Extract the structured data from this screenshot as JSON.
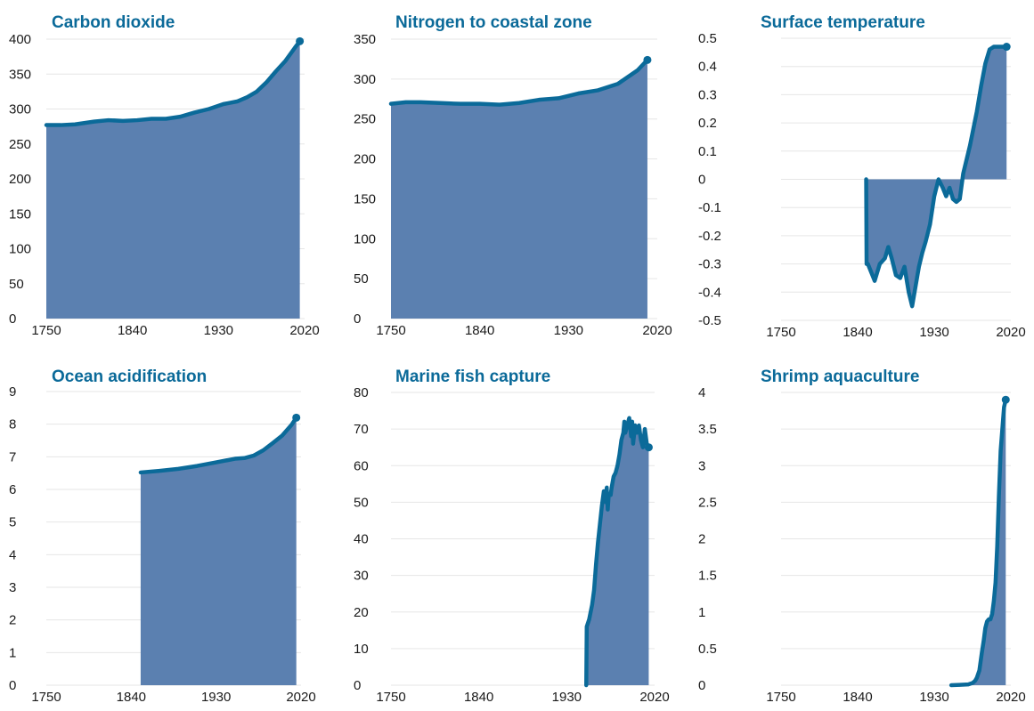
{
  "style": {
    "line_color": "#0b6a99",
    "fill_color": "#5b80b0",
    "title_color": "#0b6a99"
  },
  "chart_data": [
    {
      "type": "area",
      "title": "Carbon dioxide",
      "x_ticks": [
        "1750",
        "1840",
        "1930",
        "2020"
      ],
      "y_ticks": [
        "0",
        "50",
        "100",
        "150",
        "200",
        "250",
        "300",
        "350",
        "400"
      ],
      "xlim": [
        1750,
        2020
      ],
      "ylim": [
        0,
        400
      ],
      "x": [
        1750,
        1765,
        1780,
        1800,
        1815,
        1830,
        1845,
        1860,
        1875,
        1890,
        1905,
        1920,
        1935,
        1950,
        1960,
        1970,
        1980,
        1990,
        2000,
        2010,
        2015
      ],
      "y": [
        277,
        277,
        278,
        282,
        284,
        283,
        284,
        286,
        286,
        289,
        295,
        300,
        307,
        311,
        317,
        325,
        338,
        354,
        369,
        388,
        397
      ]
    },
    {
      "type": "area",
      "title": "Nitrogen to coastal zone",
      "x_ticks": [
        "1750",
        "1840",
        "1930",
        "2020"
      ],
      "y_ticks": [
        "0",
        "50",
        "100",
        "150",
        "200",
        "250",
        "300",
        "350"
      ],
      "xlim": [
        1750,
        2020
      ],
      "ylim": [
        0,
        350
      ],
      "x": [
        1750,
        1765,
        1780,
        1800,
        1820,
        1840,
        1860,
        1880,
        1900,
        1920,
        1940,
        1960,
        1980,
        2000,
        2010
      ],
      "y": [
        269,
        271,
        271,
        270,
        269,
        269,
        268,
        270,
        274,
        276,
        282,
        286,
        294,
        311,
        324
      ]
    },
    {
      "type": "area",
      "title": "Surface temperature",
      "x_ticks": [
        "1750",
        "1840",
        "1930",
        "2020"
      ],
      "y_ticks": [
        "-0.5",
        "-0.4",
        "-0.3",
        "-0.2",
        "-0.1",
        "0",
        "0.1",
        "0.2",
        "0.3",
        "0.4",
        "0.5"
      ],
      "xlim": [
        1750,
        2020
      ],
      "ylim": [
        -0.5,
        0.5
      ],
      "baseline": 0,
      "x": [
        1850,
        1850.5,
        1852,
        1856,
        1860,
        1866,
        1872,
        1876,
        1880,
        1885,
        1890,
        1895,
        1900,
        1904,
        1908,
        1912,
        1916,
        1920,
        1925,
        1930,
        1935,
        1940,
        1944,
        1948,
        1952,
        1956,
        1960,
        1964,
        1968,
        1972,
        1976,
        1980,
        1985,
        1990,
        1995,
        2000,
        2005,
        2010,
        2015
      ],
      "y": [
        0,
        -0.3,
        -0.3,
        -0.33,
        -0.36,
        -0.3,
        -0.28,
        -0.24,
        -0.28,
        -0.34,
        -0.35,
        -0.31,
        -0.4,
        -0.45,
        -0.38,
        -0.31,
        -0.26,
        -0.22,
        -0.16,
        -0.06,
        0.0,
        -0.03,
        -0.06,
        -0.03,
        -0.07,
        -0.08,
        -0.07,
        0.02,
        0.07,
        0.12,
        0.18,
        0.24,
        0.33,
        0.41,
        0.46,
        0.47,
        0.47,
        0.47,
        0.47
      ]
    },
    {
      "type": "area",
      "title": "Ocean acidification",
      "x_ticks": [
        "1750",
        "1840",
        "1930",
        "2020"
      ],
      "y_ticks": [
        "0",
        "1",
        "2",
        "3",
        "4",
        "5",
        "6",
        "7",
        "8",
        "9"
      ],
      "xlim": [
        1750,
        2020
      ],
      "ylim": [
        0,
        9
      ],
      "x": [
        1850,
        1870,
        1890,
        1910,
        1930,
        1950,
        1960,
        1970,
        1980,
        1990,
        2000,
        2010,
        2015
      ],
      "y": [
        6.52,
        6.57,
        6.63,
        6.72,
        6.83,
        6.94,
        6.96,
        7.04,
        7.2,
        7.42,
        7.65,
        7.98,
        8.2
      ]
    },
    {
      "type": "area",
      "title": "Marine fish capture",
      "x_ticks": [
        "1750",
        "1840",
        "1930",
        "2020"
      ],
      "y_ticks": [
        "0",
        "10",
        "20",
        "30",
        "40",
        "50",
        "60",
        "70",
        "80"
      ],
      "xlim": [
        1750,
        2020
      ],
      "ylim": [
        0,
        80
      ],
      "x": [
        1950,
        1950.5,
        1953,
        1956,
        1958,
        1960,
        1962,
        1964,
        1966,
        1968,
        1970,
        1971,
        1972,
        1973,
        1975,
        1976,
        1978,
        1980,
        1982,
        1984,
        1986,
        1988,
        1989,
        1990,
        1992,
        1994,
        1996,
        1997,
        1998,
        2000,
        2002,
        2004,
        2006,
        2008,
        2010,
        2012,
        2014
      ],
      "y": [
        0,
        16,
        18,
        22,
        26,
        33,
        39,
        44,
        49,
        53,
        50,
        54,
        48,
        52,
        52,
        54,
        57,
        58,
        60,
        63,
        67,
        69,
        72,
        69,
        71,
        73,
        68,
        72,
        66,
        71,
        69,
        71,
        67,
        65,
        70,
        66,
        65
      ]
    },
    {
      "type": "area",
      "title": "Shrimp aquaculture",
      "x_ticks": [
        "1750",
        "1840",
        "1930",
        "2020"
      ],
      "y_ticks": [
        "0",
        "0.5",
        "1",
        "1.5",
        "2",
        "2.5",
        "3",
        "3.5",
        "4"
      ],
      "xlim": [
        1750,
        2020
      ],
      "ylim": [
        0,
        4
      ],
      "x": [
        1950,
        1960,
        1970,
        1975,
        1978,
        1980,
        1983,
        1986,
        1988,
        1990,
        1992,
        1994,
        1996,
        1998,
        2000,
        2002,
        2004,
        2006,
        2008,
        2010,
        2012,
        2014
      ],
      "y": [
        0,
        0.005,
        0.01,
        0.03,
        0.06,
        0.1,
        0.2,
        0.45,
        0.6,
        0.78,
        0.87,
        0.9,
        0.9,
        0.97,
        1.15,
        1.4,
        1.9,
        2.6,
        3.2,
        3.5,
        3.8,
        3.9
      ]
    }
  ]
}
